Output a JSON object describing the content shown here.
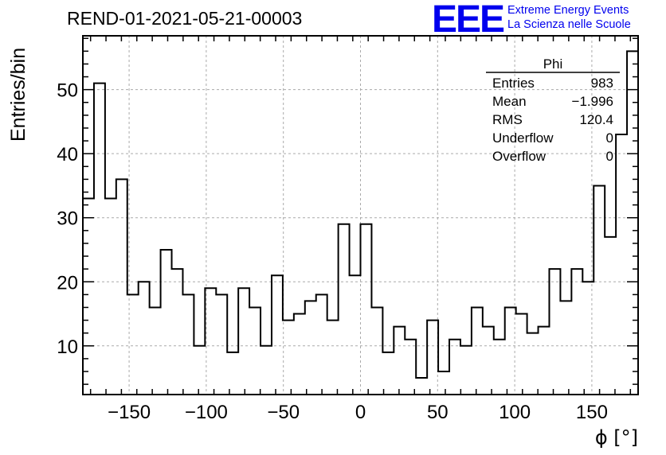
{
  "header": {
    "run_title": "REND-01-2021-05-21-00003",
    "logo": "EEE",
    "logo_line1": "Extreme Energy Events",
    "logo_line2": "La Scienza nelle Scuole",
    "logo_color": "#0000ee"
  },
  "chart_data": {
    "type": "bar",
    "style": "step-histogram",
    "xlabel": "ϕ [°]",
    "ylabel": "Entries/bin",
    "xlim": [
      -180,
      180
    ],
    "ylim": [
      2.4,
      58.4
    ],
    "grid": true,
    "xticks": [
      -150,
      -100,
      -50,
      0,
      50,
      100,
      150
    ],
    "xtick_labels": [
      "−150",
      "−100",
      "−50",
      "0",
      "50",
      "100",
      "150"
    ],
    "yticks": [
      10,
      20,
      30,
      40,
      50
    ],
    "ytick_labels": [
      "10",
      "20",
      "30",
      "40",
      "50"
    ],
    "bin_edges_range": [
      -180,
      180
    ],
    "bin_width": 7.2,
    "values": [
      33,
      51,
      33,
      36,
      18,
      20,
      16,
      25,
      22,
      18,
      10,
      19,
      18,
      9,
      19,
      16,
      10,
      21,
      14,
      15,
      17,
      18,
      14,
      29,
      21,
      29,
      16,
      9,
      13,
      11,
      5,
      14,
      6,
      11,
      10,
      16,
      13,
      11,
      16,
      15,
      12,
      13,
      22,
      17,
      22,
      20,
      35,
      27,
      43,
      56
    ],
    "stats_box": {
      "title": "Phi",
      "rows": [
        {
          "label": "Entries",
          "value": "983"
        },
        {
          "label": "Mean",
          "value": "−1.996"
        },
        {
          "label": "RMS",
          "value": "120.4"
        },
        {
          "label": "Underflow",
          "value": "0"
        },
        {
          "label": "Overflow",
          "value": "0"
        }
      ]
    }
  }
}
